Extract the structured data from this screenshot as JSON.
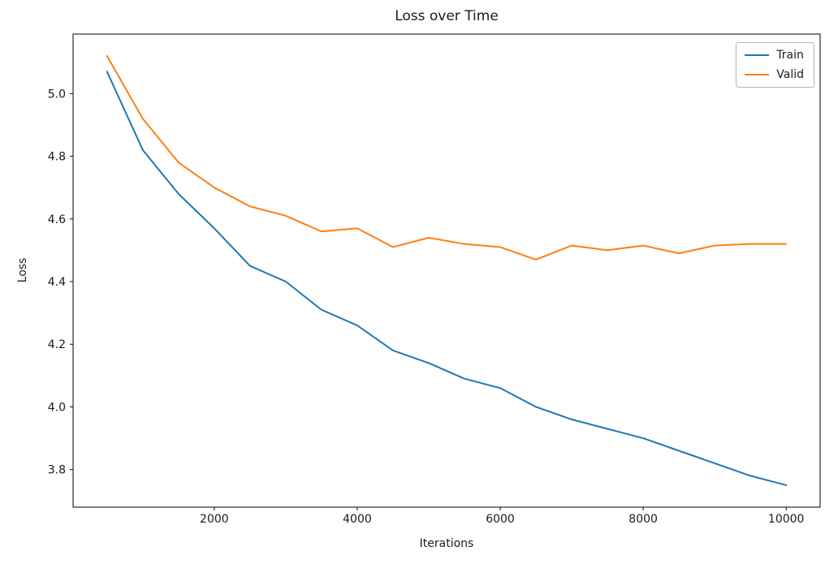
{
  "figure": {
    "background": "#ffffff"
  },
  "chart_data": {
    "type": "line",
    "title": "Loss over Time",
    "xlabel": "Iterations",
    "ylabel": "Loss",
    "x": [
      500,
      1000,
      1500,
      2000,
      2500,
      3000,
      3500,
      4000,
      4500,
      5000,
      5500,
      6000,
      6500,
      7000,
      7500,
      8000,
      8500,
      9000,
      9500,
      10000
    ],
    "series": [
      {
        "name": "Train",
        "color": "#1f77b4",
        "values": [
          5.07,
          4.82,
          4.68,
          4.57,
          4.45,
          4.4,
          4.31,
          4.26,
          4.18,
          4.14,
          4.09,
          4.06,
          4.0,
          3.96,
          3.93,
          3.9,
          3.86,
          3.82,
          3.78,
          3.75
        ]
      },
      {
        "name": "Valid",
        "color": "#ff7f0e",
        "values": [
          5.12,
          4.92,
          4.78,
          4.7,
          4.64,
          4.61,
          4.56,
          4.57,
          4.51,
          4.54,
          4.52,
          4.51,
          4.47,
          4.515,
          4.5,
          4.515,
          4.49,
          4.515,
          4.52,
          4.52
        ]
      }
    ],
    "xlim": [
      25,
      10475
    ],
    "ylim": [
      3.68,
      5.19
    ],
    "xticks": [
      2000,
      4000,
      6000,
      8000,
      10000
    ],
    "yticks": [
      3.8,
      4.0,
      4.2,
      4.4,
      4.6,
      4.8,
      5.0
    ],
    "legend_position": "upper right",
    "grid": false,
    "line_width": 2,
    "axis_color": "#000000",
    "tick_label_color": "#1a1a1a"
  }
}
